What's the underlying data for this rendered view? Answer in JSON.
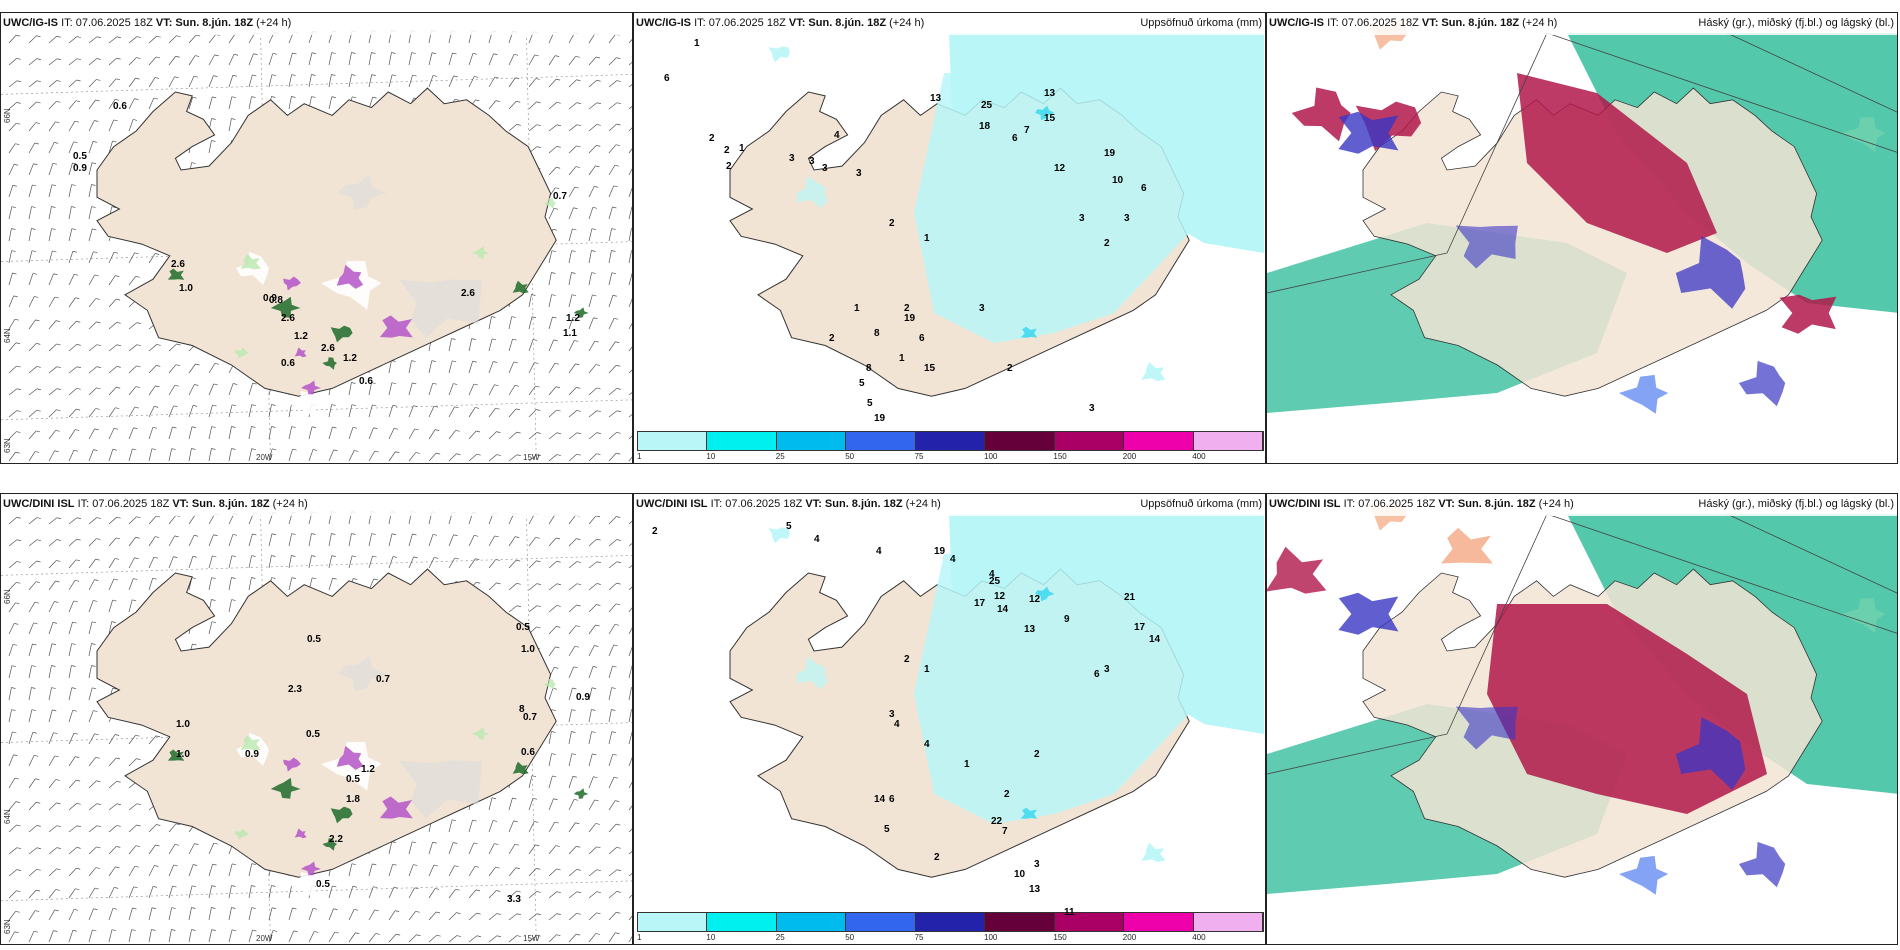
{
  "panels": [
    {
      "id": "p1",
      "title_model": "UWC/IG-IS",
      "title_it": "IT: 07.06.2025 18Z",
      "title_vt": "VT: Sun. 8.jún. 18Z",
      "title_lead": "(+24 h)",
      "title_right": "",
      "lat_labels": [
        "66N",
        "64N",
        "63N"
      ],
      "lon_labels": [
        "20W",
        "15W"
      ],
      "values": [
        "0.6",
        "0.5",
        "0.9",
        "2.6",
        "1.0",
        "0.9",
        "2.6",
        "1.2",
        "2.6",
        "1.2",
        "0.6",
        "0.6",
        "0.7",
        "1.2",
        "1.1",
        "2.6",
        "0.8"
      ]
    },
    {
      "id": "p2",
      "title_model": "UWC/IG-IS",
      "title_it": "IT: 07.06.2025 18Z",
      "title_vt": "VT: Sun. 8.jún. 18Z",
      "title_lead": "(+24 h)",
      "title_right": "Uppsöfnuð úrkoma (mm)",
      "values": [
        "1",
        "6",
        "2",
        "2",
        "1",
        "2",
        "3",
        "3",
        "4",
        "3",
        "3",
        "13",
        "25",
        "13",
        "18",
        "15",
        "7",
        "6",
        "12",
        "19",
        "10",
        "3",
        "6",
        "3",
        "2",
        "2",
        "1",
        "2",
        "19",
        "8",
        "1",
        "2",
        "1",
        "8",
        "5",
        "5",
        "19",
        "6",
        "15",
        "3",
        "3",
        "2"
      ]
    },
    {
      "id": "p3",
      "title_model": "UWC/IG-IS",
      "title_it": "IT: 07.06.2025 18Z",
      "title_vt": "VT: Sun. 8.jún. 18Z",
      "title_lead": "(+24 h)",
      "title_right": "Háský (gr.), miðský (fj.bl.) og lágský (bl.)"
    },
    {
      "id": "p4",
      "title_model": "UWC/DINI ISL",
      "title_it": "IT: 07.06.2025 18Z",
      "title_vt": "VT: Sun. 8.jún. 18Z",
      "title_lead": "(+24 h)",
      "title_right": "",
      "lat_labels": [
        "66N",
        "64N",
        "63N"
      ],
      "lon_labels": [
        "20W",
        "15W"
      ],
      "values": [
        "0.5",
        "1.0",
        "1.0",
        "0.9",
        "0.5",
        "2.3",
        "0.7",
        "8",
        "0.5",
        "1.0",
        "0.7",
        "0.9",
        "0.6",
        "1.2",
        "2.2",
        "0.5",
        "0.5",
        "1.8",
        "3.3"
      ]
    },
    {
      "id": "p5",
      "title_model": "UWC/DINI ISL",
      "title_it": "IT: 07.06.2025 18Z",
      "title_vt": "VT: Sun. 8.jún. 18Z",
      "title_lead": "(+24 h)",
      "title_right": "Uppsöfnuð úrkoma (mm)",
      "values": [
        "2",
        "5",
        "4",
        "4",
        "19",
        "4",
        "4",
        "17",
        "25",
        "12",
        "14",
        "12",
        "13",
        "9",
        "21",
        "17",
        "14",
        "6",
        "3",
        "2",
        "1",
        "3",
        "4",
        "4",
        "14",
        "6",
        "5",
        "22",
        "7",
        "10",
        "13",
        "11",
        "3",
        "2",
        "2",
        "1",
        "2"
      ]
    },
    {
      "id": "p6",
      "title_model": "UWC/DINI ISL",
      "title_it": "IT: 07.06.2025 18Z",
      "title_vt": "VT: Sun. 8.jún. 18Z",
      "title_lead": "(+24 h)",
      "title_right": "Háský (gr.), miðský (fj.bl.) og lágský (bl.)"
    }
  ],
  "colorbar": {
    "labels": [
      "1",
      "10",
      "25",
      "50",
      "75",
      "100",
      "150",
      "200",
      "400"
    ],
    "colors": [
      "#b8f6f8",
      "#00f0f0",
      "#00bbee",
      "#3366ee",
      "#2222aa",
      "#66003a",
      "#aa0066",
      "#ee00aa",
      "#f0b0f0"
    ]
  },
  "colors": {
    "land": "#f2e4d4",
    "precip_light": "#b8f6f8",
    "cloud_high": "#1bb58e",
    "cloud_mid": "#b0174a",
    "cloud_low": "#3a36c4",
    "snow_green": "#1f6b2a",
    "snow_purple": "#b455c8"
  }
}
